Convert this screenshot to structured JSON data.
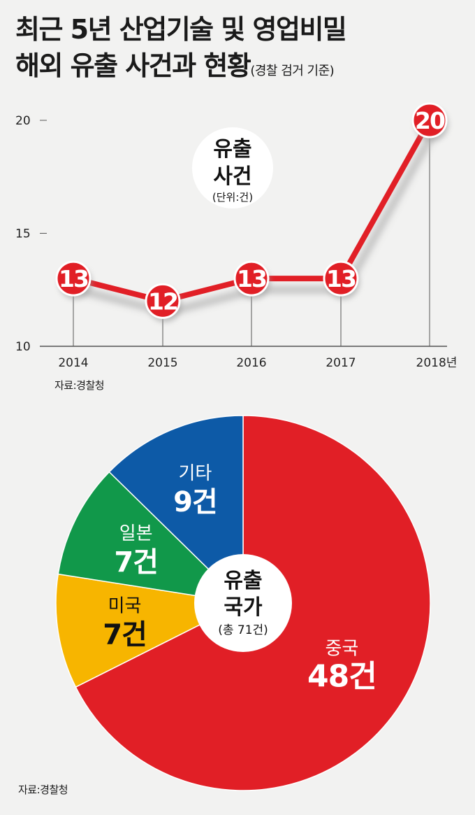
{
  "title": {
    "line1": "최근 5년 산업기술 및 영업비밀",
    "line2": "해외 유출 사건과 현황",
    "criteria": "(경찰 검거 기준)"
  },
  "colors": {
    "red": "#e11f26",
    "blue": "#0d5aa7",
    "green": "#11984a",
    "yellow": "#f7b500",
    "background": "#f2f2f1"
  },
  "chart_data": [
    {
      "type": "line",
      "x": [
        "2014",
        "2015",
        "2016",
        "2017",
        "2018년"
      ],
      "series": [
        {
          "values": [
            13,
            12,
            13,
            13,
            20
          ]
        }
      ],
      "yticks": [
        10,
        15,
        20
      ],
      "ylim": [
        10,
        20
      ],
      "center_label": {
        "line1": "유출",
        "line2": "사건",
        "unit": "(단위:건)"
      },
      "grid": false,
      "source": "자료:경찰청"
    },
    {
      "type": "pie",
      "slices": [
        {
          "label": "중국",
          "value": 48,
          "value_text": "48건",
          "color": "#e11f26"
        },
        {
          "label": "미국",
          "value": 7,
          "value_text": "7건",
          "color": "#f7b500"
        },
        {
          "label": "일본",
          "value": 7,
          "value_text": "7건",
          "color": "#11984a"
        },
        {
          "label": "기타",
          "value": 9,
          "value_text": "9건",
          "color": "#0d5aa7"
        }
      ],
      "center_label": {
        "line1": "유출",
        "line2": "국가",
        "total": "(총 71건)"
      },
      "source": "자료:경찰청"
    }
  ]
}
